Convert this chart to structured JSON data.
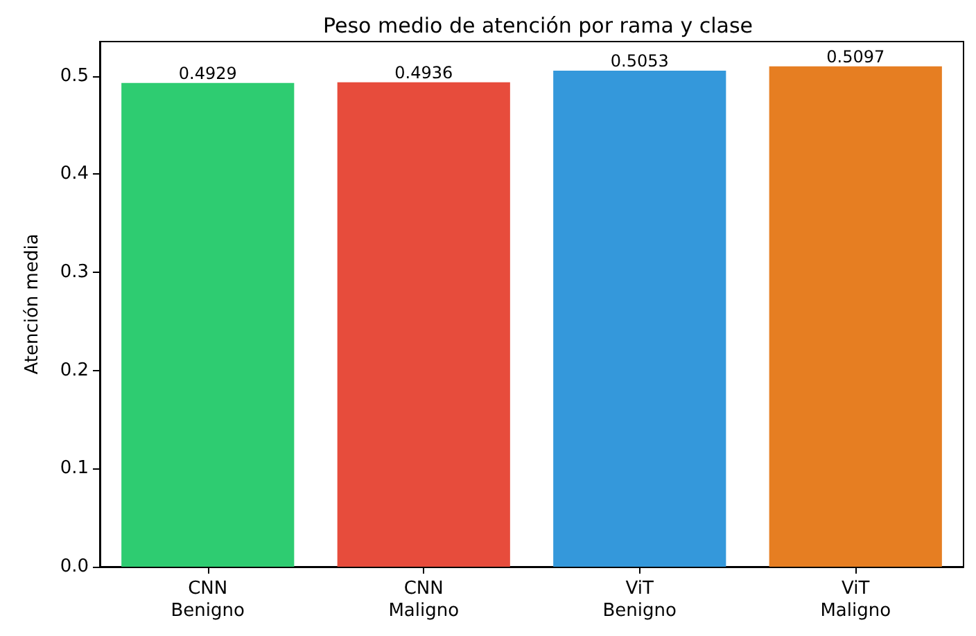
{
  "chart_data": {
    "type": "bar",
    "title": "Peso medio de atención por rama y clase",
    "ylabel": "Atención media",
    "categories": [
      "CNN\nBenigno",
      "CNN\nMaligno",
      "ViT\nBenigno",
      "ViT\nMaligno"
    ],
    "values": [
      0.4929,
      0.4936,
      0.5053,
      0.5097
    ],
    "colors": [
      "#2ecc71",
      "#e74c3c",
      "#3498db",
      "#e67e22"
    ],
    "ylim": [
      0,
      0.535
    ],
    "yticks": [
      {
        "value": 0,
        "label": "0.0"
      },
      {
        "value": 0.1,
        "label": "0.1"
      },
      {
        "value": 0.2,
        "label": "0.2"
      },
      {
        "value": 0.3,
        "label": "0.3"
      },
      {
        "value": 0.4,
        "label": "0.4"
      },
      {
        "value": 0.5,
        "label": "0.5"
      }
    ],
    "data_labels": true
  }
}
